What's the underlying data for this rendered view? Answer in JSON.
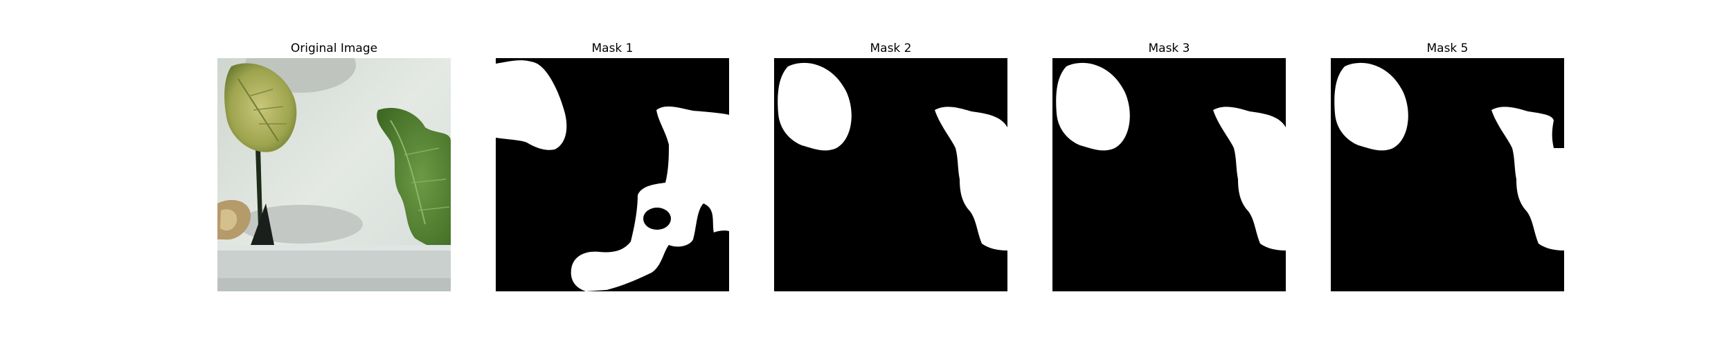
{
  "panels": [
    {
      "title": "Original Image"
    },
    {
      "title": "Mask 1"
    },
    {
      "title": "Mask 2"
    },
    {
      "title": "Mask 3"
    },
    {
      "title": "Mask 5"
    }
  ],
  "colors": {
    "mask_background": "#000000",
    "mask_foreground": "#ffffff",
    "photo_wall": "#d9dfd9",
    "photo_leaf_dark": "#4f7a2f",
    "photo_leaf_yellow": "#b4b455",
    "photo_tray": "#c9d0cd"
  }
}
